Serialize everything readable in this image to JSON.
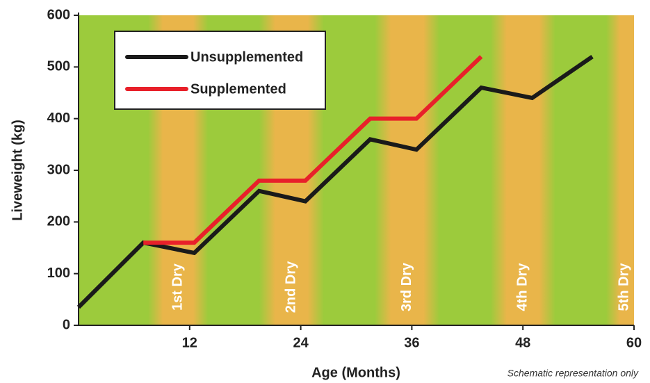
{
  "chart_data": {
    "type": "line",
    "x_label": "Age (Months)",
    "y_label": "Liveweight (kg)",
    "note": "Schematic representation only",
    "xlim": [
      0,
      60
    ],
    "ylim": [
      0,
      600
    ],
    "xticks": [
      12,
      24,
      36,
      48,
      60
    ],
    "yticks": [
      0,
      100,
      200,
      300,
      400,
      500,
      600
    ],
    "grid": false,
    "legend": "top-left",
    "background_color": "#9ccb3c",
    "season_color": "#e9b54a",
    "seasons": [
      {
        "label": "1st Dry",
        "start": 7.5,
        "end": 14
      },
      {
        "label": "2nd Dry",
        "start": 19.5,
        "end": 26.5
      },
      {
        "label": "3rd Dry",
        "start": 32,
        "end": 39
      },
      {
        "label": "4th Dry",
        "start": 44.5,
        "end": 51.5
      },
      {
        "label": "5th Dry",
        "start": 57,
        "end": 60
      }
    ],
    "series": [
      {
        "name": "Unsupplemented",
        "color": "#1a1a1a",
        "x": [
          0,
          7,
          12.5,
          19.5,
          24.5,
          31.5,
          36.5,
          43.5,
          49,
          55.5
        ],
        "values": [
          35,
          160,
          140,
          260,
          240,
          360,
          340,
          460,
          440,
          520
        ]
      },
      {
        "name": "Supplemented",
        "color": "#e8202a",
        "x": [
          7,
          12.5,
          19.5,
          24.5,
          31.5,
          36.5,
          43.5
        ],
        "values": [
          160,
          160,
          280,
          280,
          400,
          400,
          520
        ]
      }
    ]
  }
}
